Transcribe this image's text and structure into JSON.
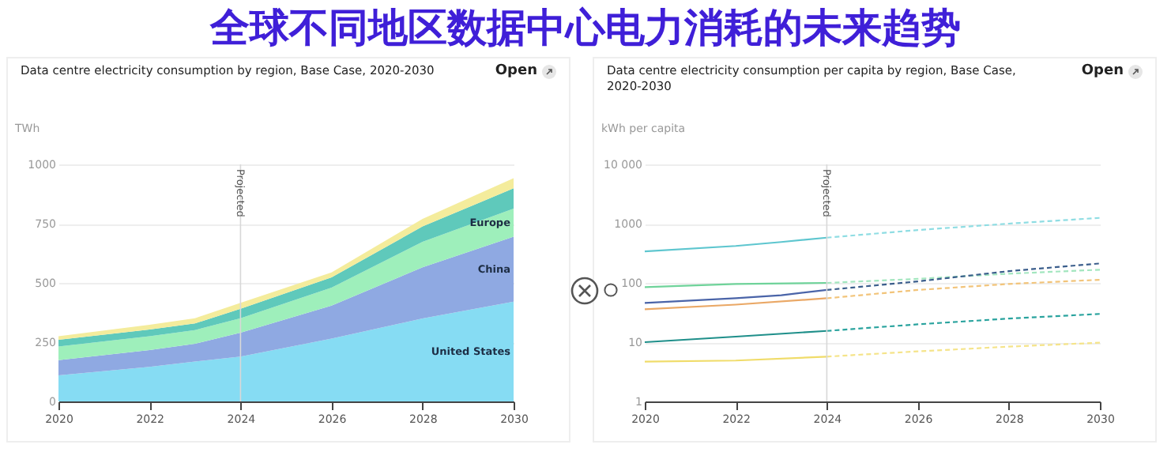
{
  "chart_data": [
    {
      "type": "area",
      "title": "全球不同地区数据中心电力消耗的未来趋势",
      "subtitle": "Data centre electricity consumption by region, Base Case, 2020-2030",
      "annotations": [
        "Open"
      ],
      "ylabel": "TWh",
      "stacked": true,
      "grid": "y",
      "legend": false,
      "x": [
        2020,
        2022,
        2023,
        2024,
        2026,
        2028,
        2030
      ],
      "xlim": [
        2020,
        2030
      ],
      "xticks": [
        2020,
        2022,
        2024,
        2026,
        2028,
        2030
      ],
      "ylim": [
        0,
        1000
      ],
      "yticks": [
        0,
        250,
        500,
        750,
        1000
      ],
      "ref_lines": [
        {
          "axis": "x",
          "value": 2024,
          "label": "Projected",
          "color": "#d8d8d8"
        }
      ],
      "series": [
        {
          "name": "United States",
          "color": "#86dcf3",
          "values": [
            110,
            146,
            168,
            189,
            265,
            350,
            421
          ]
        },
        {
          "name": "China",
          "color": "#8fa9e2",
          "values": [
            64,
            71,
            75,
            101,
            139,
            216,
            274
          ]
        },
        {
          "name": "Europe",
          "color": "#9eefbb",
          "values": [
            58,
            58,
            58,
            61,
            76,
            107,
            118
          ]
        },
        {
          "color": "#5fc9bb",
          "values": [
            28,
            28,
            28,
            40,
            43,
            65,
            86
          ]
        },
        {
          "color": "#f4ec9c",
          "values": [
            15,
            20,
            22,
            25,
            21,
            32,
            43
          ]
        }
      ]
    },
    {
      "type": "line",
      "title": "Data centre electricity consumption per capita by region, Base Case, 2020-2030",
      "annotations": [
        "Open"
      ],
      "ylabel": "kWh per capita",
      "log": "y",
      "grid": "y",
      "legend": false,
      "xlim": [
        2020,
        2030
      ],
      "xticks": [
        2020,
        2022,
        2024,
        2026,
        2028,
        2030
      ],
      "ylim": [
        1,
        10000
      ],
      "yticks": [
        1,
        10,
        100,
        1000,
        {
          "value": 10000,
          "label": "10 000"
        }
      ],
      "ref_lines": [
        {
          "axis": "x",
          "value": 2024,
          "label": "Projected",
          "color": "#d8d8d8"
        }
      ],
      "series": [
        {
          "color": "#5ec6cf",
          "line_style": "solid",
          "x": [
            2020,
            2022,
            2023,
            2024
          ],
          "values": [
            340,
            420,
            490,
            580
          ]
        },
        {
          "color": "#8fdde3",
          "line_style": "dashed",
          "x": [
            2024,
            2026,
            2028,
            2030
          ],
          "values": [
            580,
            780,
            1000,
            1250
          ]
        },
        {
          "color": "#6fd39a",
          "line_style": "solid",
          "x": [
            2020,
            2022,
            2024
          ],
          "values": [
            85,
            96,
            100
          ]
        },
        {
          "color": "#a3e6bf",
          "line_style": "dashed",
          "x": [
            2024,
            2026,
            2028,
            2030
          ],
          "values": [
            100,
            117,
            143,
            167
          ]
        },
        {
          "color": "#4a64a8",
          "line_style": "solid",
          "x": [
            2020,
            2022,
            2023,
            2024
          ],
          "values": [
            46,
            55,
            62,
            76
          ]
        },
        {
          "color": "#3b5e8c",
          "line_style": "dashed",
          "x": [
            2024,
            2026,
            2028,
            2030
          ],
          "values": [
            76,
            106,
            158,
            213
          ]
        },
        {
          "color": "#eaa866",
          "line_style": "solid",
          "x": [
            2020,
            2022,
            2024
          ],
          "values": [
            36,
            43,
            55
          ]
        },
        {
          "color": "#f2c47a",
          "line_style": "dashed",
          "x": [
            2024,
            2026,
            2028,
            2030
          ],
          "values": [
            55,
            76,
            96,
            113
          ]
        },
        {
          "color": "#1f8f8a",
          "line_style": "solid",
          "x": [
            2020,
            2022,
            2024
          ],
          "values": [
            10,
            12.4,
            15.5
          ]
        },
        {
          "color": "#2aa39e",
          "line_style": "dashed",
          "x": [
            2024,
            2026,
            2028,
            2030
          ],
          "values": [
            15.5,
            20,
            25,
            30
          ]
        },
        {
          "color": "#f0dc6a",
          "line_style": "solid",
          "x": [
            2020,
            2022,
            2024
          ],
          "values": [
            4.7,
            4.9,
            5.7
          ]
        },
        {
          "color": "#f5e48a",
          "line_style": "dashed",
          "x": [
            2024,
            2026,
            2028,
            2030
          ],
          "values": [
            5.7,
            7,
            8.4,
            9.8
          ]
        }
      ]
    }
  ]
}
